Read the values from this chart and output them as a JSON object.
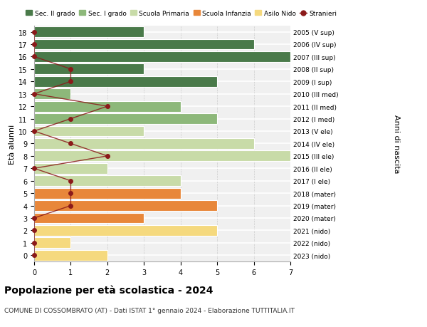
{
  "ages": [
    0,
    1,
    2,
    3,
    4,
    5,
    6,
    7,
    8,
    9,
    10,
    11,
    12,
    13,
    14,
    15,
    16,
    17,
    18
  ],
  "right_labels": [
    "2023 (nido)",
    "2022 (nido)",
    "2021 (nido)",
    "2020 (mater)",
    "2019 (mater)",
    "2018 (mater)",
    "2017 (I ele)",
    "2016 (II ele)",
    "2015 (III ele)",
    "2014 (IV ele)",
    "2013 (V ele)",
    "2012 (I med)",
    "2011 (II med)",
    "2010 (III med)",
    "2009 (I sup)",
    "2008 (II sup)",
    "2007 (III sup)",
    "2006 (IV sup)",
    "2005 (V sup)"
  ],
  "bar_values": [
    2,
    1,
    5,
    3,
    5,
    4,
    4,
    2,
    7,
    6,
    3,
    5,
    4,
    1,
    5,
    3,
    7,
    6,
    3
  ],
  "stranieri": [
    0,
    0,
    0,
    0,
    1,
    1,
    1,
    0,
    2,
    1,
    0,
    1,
    2,
    0,
    1,
    1,
    0,
    0,
    0
  ],
  "colors": {
    "Asilo Nido": "#f5d97e",
    "Scuola Infanzia": "#e8873a",
    "Scuola Primaria": "#c8dba8",
    "Sec. I grado": "#8db87a",
    "Sec. II grado": "#4a7a4a"
  },
  "age_category": {
    "0": "Asilo Nido",
    "1": "Asilo Nido",
    "2": "Asilo Nido",
    "3": "Scuola Infanzia",
    "4": "Scuola Infanzia",
    "5": "Scuola Infanzia",
    "6": "Scuola Primaria",
    "7": "Scuola Primaria",
    "8": "Scuola Primaria",
    "9": "Scuola Primaria",
    "10": "Scuola Primaria",
    "11": "Sec. I grado",
    "12": "Sec. I grado",
    "13": "Sec. I grado",
    "14": "Sec. II grado",
    "15": "Sec. II grado",
    "16": "Sec. II grado",
    "17": "Sec. II grado",
    "18": "Sec. II grado"
  },
  "stranieri_color": "#8b1a1a",
  "title": "Popolazione per età scolastica - 2024",
  "subtitle": "COMUNE DI COSSOMBRATO (AT) - Dati ISTAT 1° gennaio 2024 - Elaborazione TUTTITALIA.IT",
  "ylabel_left": "Età alunni",
  "ylabel_right": "Anni di nascita",
  "xlim": [
    0,
    7
  ],
  "legend_order": [
    "Sec. II grado",
    "Sec. I grado",
    "Scuola Primaria",
    "Scuola Infanzia",
    "Asilo Nido",
    "Stranieri"
  ],
  "bg_color": "#f0f0f0",
  "title_fontsize": 10,
  "subtitle_fontsize": 6.5,
  "tick_fontsize": 7,
  "ylabel_fontsize": 8,
  "legend_fontsize": 6.5
}
